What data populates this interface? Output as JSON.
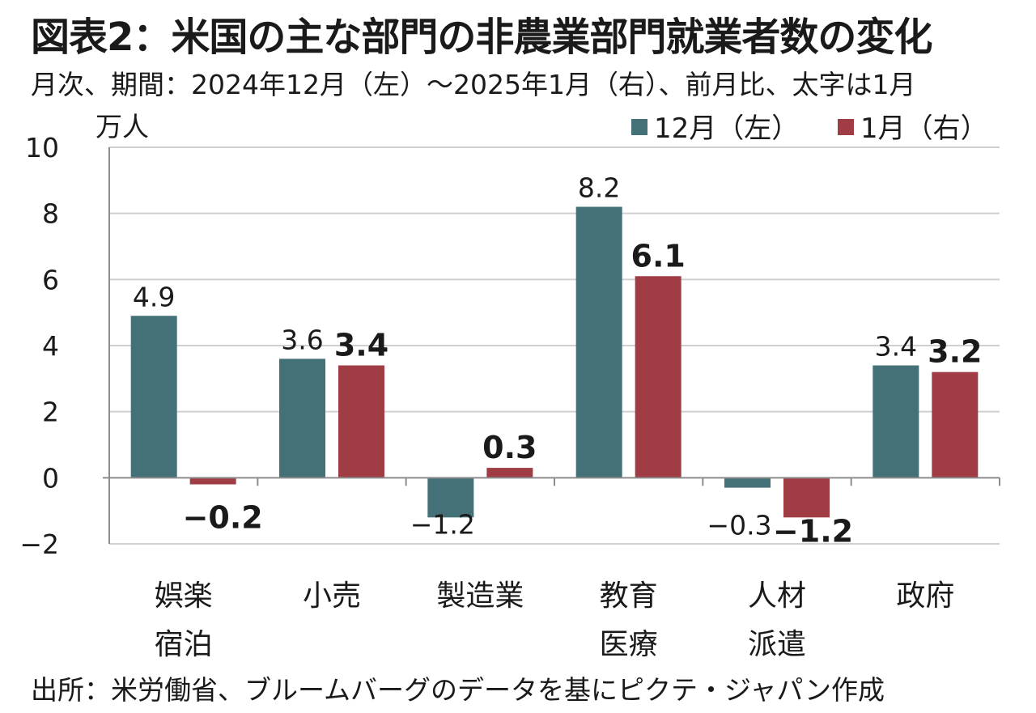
{
  "chart_data": {
    "type": "bar",
    "title": "図表2：米国の主な部門の非農業部門就業者数の変化",
    "subtitle": "月次、期間：2024年12月（左）～2025年1月（右）、前月比、太字は1月",
    "ylabel": "万人",
    "source": "出所：米労働省、ブルームバーグのデータを基にピクテ・ジャパン作成",
    "ylim": [
      -2,
      10
    ],
    "yticks": [
      -2,
      0,
      2,
      4,
      6,
      8,
      10
    ],
    "ytick_labels": [
      "−2",
      "0",
      "2",
      "4",
      "6",
      "8",
      "10"
    ],
    "grid": true,
    "legend_position": "top-right",
    "categories": [
      [
        "娯楽",
        "宿泊"
      ],
      [
        "小売"
      ],
      [
        "製造業"
      ],
      [
        "教育",
        "医療"
      ],
      [
        "人材",
        "派遣"
      ],
      [
        "政府"
      ]
    ],
    "series": [
      {
        "name": "12月（左）",
        "color": "#437177",
        "bold_labels": false,
        "values": [
          4.9,
          3.6,
          -1.2,
          8.2,
          -0.3,
          3.4
        ],
        "labels": [
          "4.9",
          "3.6",
          "−1.2",
          "8.2",
          "−0.3",
          "3.4"
        ]
      },
      {
        "name": "1月（右）",
        "color": "#a03c44",
        "bold_labels": true,
        "values": [
          -0.2,
          3.4,
          0.3,
          6.1,
          -1.2,
          3.2
        ],
        "labels": [
          "−0.2",
          "3.4",
          "0.3",
          "6.1",
          "−1.2",
          "3.2"
        ]
      }
    ]
  }
}
